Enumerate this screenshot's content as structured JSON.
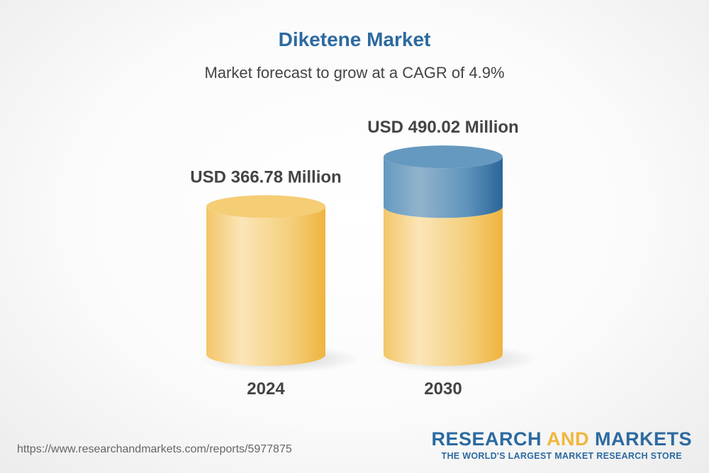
{
  "title": "Diketene Market",
  "subtitle": "Market forecast to grow at a CAGR of 4.9%",
  "chart_data": {
    "type": "bar",
    "style": "3d-cylinder",
    "categories": [
      "2024",
      "2030"
    ],
    "values": [
      366.78,
      490.02
    ],
    "data_labels": [
      "USD 366.78 Million",
      "USD 490.02 Million"
    ],
    "unit": "USD Million",
    "colors": {
      "base": "#f2c25a",
      "growth": "#2c6aa0"
    }
  },
  "footer": {
    "url": "https://www.researchandmarkets.com/reports/5977875",
    "logo_part1": "RESEARCH ",
    "logo_part2": "AND",
    "logo_part3": " MARKETS",
    "tagline": "THE WORLD'S LARGEST MARKET RESEARCH STORE"
  }
}
